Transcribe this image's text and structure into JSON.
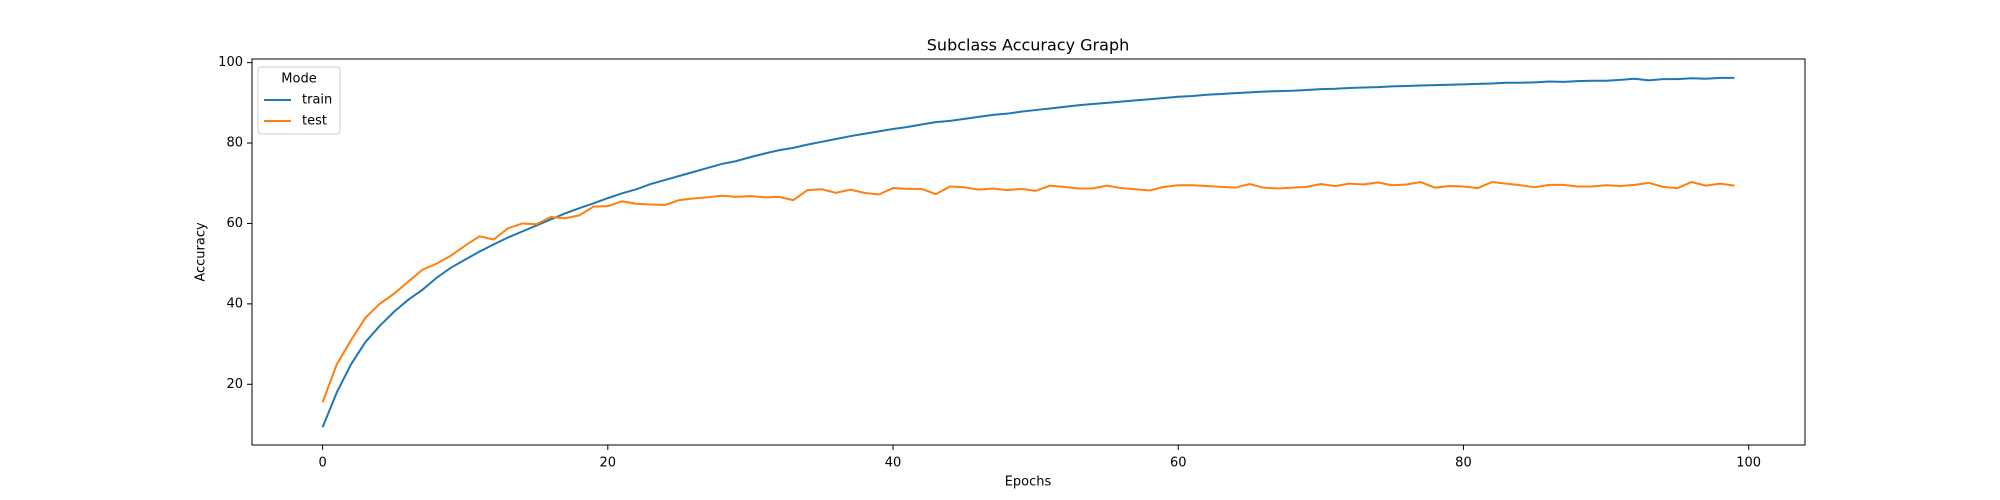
{
  "chart_data": {
    "type": "line",
    "title": "Subclass Accuracy Graph",
    "xlabel": "Epochs",
    "ylabel": "Accuracy",
    "x": [
      0,
      1,
      2,
      3,
      4,
      5,
      6,
      7,
      8,
      9,
      10,
      11,
      12,
      13,
      14,
      15,
      16,
      17,
      18,
      19,
      20,
      21,
      22,
      23,
      24,
      25,
      26,
      27,
      28,
      29,
      30,
      31,
      32,
      33,
      34,
      35,
      36,
      37,
      38,
      39,
      40,
      41,
      42,
      43,
      44,
      45,
      46,
      47,
      48,
      49,
      50,
      51,
      52,
      53,
      54,
      55,
      56,
      57,
      58,
      59,
      60,
      61,
      62,
      63,
      64,
      65,
      66,
      67,
      68,
      69,
      70,
      71,
      72,
      73,
      74,
      75,
      76,
      77,
      78,
      79,
      80,
      81,
      82,
      83,
      84,
      85,
      86,
      87,
      88,
      89,
      90,
      91,
      92,
      93,
      94,
      95,
      96,
      97,
      98,
      99
    ],
    "series": [
      {
        "name": "train",
        "color": "#1f77b4",
        "values": [
          9.3,
          18,
          25,
          30.5,
          34.5,
          38,
          41,
          43.5,
          46.5,
          49,
          51,
          53,
          54.8,
          56.5,
          58,
          59.5,
          61,
          62.5,
          63.8,
          65,
          66.3,
          67.5,
          68.5,
          69.8,
          70.8,
          71.8,
          72.8,
          73.8,
          74.8,
          75.5,
          76.5,
          77.4,
          78.2,
          78.8,
          79.6,
          80.3,
          81,
          81.7,
          82.3,
          82.9,
          83.5,
          84,
          84.6,
          85.2,
          85.5,
          86,
          86.5,
          87,
          87.3,
          87.8,
          88.2,
          88.6,
          89,
          89.4,
          89.7,
          90,
          90.3,
          90.6,
          90.9,
          91.2,
          91.5,
          91.7,
          92,
          92.2,
          92.4,
          92.6,
          92.8,
          92.9,
          93,
          93.2,
          93.4,
          93.5,
          93.7,
          93.8,
          93.9,
          94.1,
          94.2,
          94.3,
          94.4,
          94.5,
          94.6,
          94.7,
          94.8,
          95,
          95,
          95.1,
          95.3,
          95.2,
          95.4,
          95.5,
          95.5,
          95.7,
          96,
          95.6,
          95.9,
          95.9,
          96.1,
          96,
          96.2,
          96.2
        ]
      },
      {
        "name": "test",
        "color": "#ff7f0e",
        "values": [
          15.5,
          25,
          31,
          36.5,
          40,
          42.5,
          45.5,
          48.5,
          50,
          52,
          54.5,
          56.8,
          56,
          58.8,
          60,
          59.8,
          61.6,
          61.3,
          62,
          64.2,
          64.3,
          65.5,
          64.9,
          64.7,
          64.6,
          65.8,
          66.2,
          66.5,
          66.9,
          66.6,
          66.8,
          66.5,
          66.6,
          65.8,
          68.3,
          68.5,
          67.6,
          68.4,
          67.6,
          67.2,
          68.8,
          68.6,
          68.6,
          67.3,
          69.2,
          69,
          68.4,
          68.7,
          68.3,
          68.6,
          68.1,
          69.4,
          69.1,
          68.7,
          68.7,
          69.4,
          68.8,
          68.5,
          68.2,
          69.1,
          69.5,
          69.5,
          69.3,
          69.1,
          68.9,
          69.8,
          68.9,
          68.7,
          68.9,
          69.1,
          69.8,
          69.3,
          69.9,
          69.7,
          70.2,
          69.5,
          69.7,
          70.3,
          68.9,
          69.3,
          69.2,
          68.8,
          70.3,
          69.9,
          69.5,
          69,
          69.6,
          69.6,
          69.2,
          69.2,
          69.5,
          69.3,
          69.6,
          70.1,
          69.1,
          68.8,
          70.3,
          69.4,
          69.9,
          69.4
        ]
      }
    ],
    "xlim": [
      -4.95,
      103.95
    ],
    "xticks": [
      0,
      20,
      40,
      60,
      80,
      100
    ],
    "ylim": [
      4.9,
      100.9
    ],
    "yticks": [
      20,
      40,
      60,
      80,
      100
    ],
    "legend": {
      "title": "Mode",
      "loc": "upper left"
    }
  }
}
